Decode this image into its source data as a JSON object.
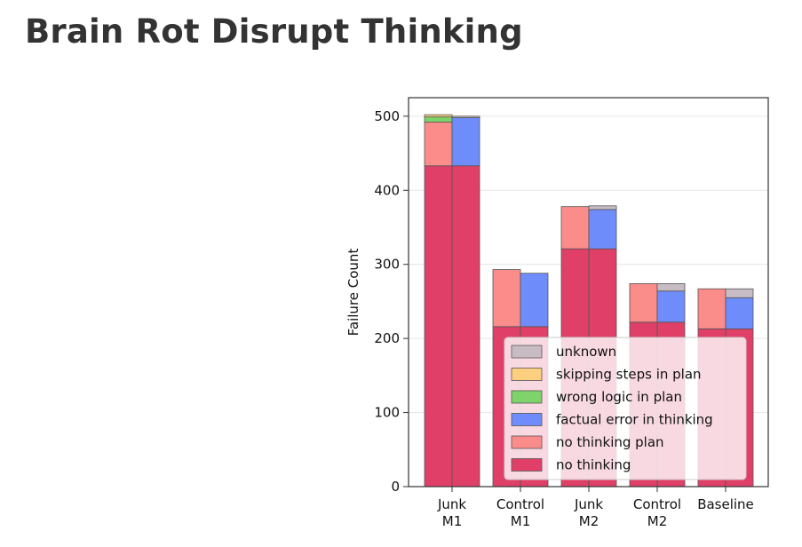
{
  "page": {
    "title": "Brain Rot Disrupt Thinking"
  },
  "chart_data": {
    "type": "bar",
    "title": "",
    "xlabel": "",
    "ylabel": "Failure Count",
    "ylim": [
      0,
      525
    ],
    "yticks": [
      0,
      100,
      200,
      300,
      400,
      500
    ],
    "grid": true,
    "legend_position": "lower-right",
    "layout": "each category has two adjacent stacked bars: left stack = no thinking + no thinking plan + wrong logic in plan + skipping steps in plan; right stack = no thinking + factual error in thinking + unknown",
    "categories": [
      {
        "line1": "Junk",
        "line2": "M1"
      },
      {
        "line1": "Control",
        "line2": "M1"
      },
      {
        "line1": "Junk",
        "line2": "M2"
      },
      {
        "line1": "Control",
        "line2": "M2"
      },
      {
        "line1": "Baseline",
        "line2": ""
      }
    ],
    "series": [
      {
        "key": "unknown",
        "name": "unknown",
        "color": "#c8bcc4",
        "stack": "right",
        "values": [
          2,
          0,
          5,
          10,
          12
        ]
      },
      {
        "key": "skip",
        "name": "skipping steps in plan",
        "color": "#fdd080",
        "stack": "left",
        "values": [
          3,
          0,
          0,
          0,
          0
        ]
      },
      {
        "key": "wrong",
        "name": "wrong logic in plan",
        "color": "#7ed36a",
        "stack": "left",
        "values": [
          7,
          0,
          0,
          0,
          0
        ]
      },
      {
        "key": "factual",
        "name": "factual error in thinking",
        "color": "#6f8dfa",
        "stack": "right",
        "values": [
          65,
          72,
          53,
          42,
          42
        ]
      },
      {
        "key": "plan",
        "name": "no thinking plan",
        "color": "#fa8c8a",
        "stack": "left",
        "values": [
          59,
          77,
          57,
          52,
          54
        ]
      },
      {
        "key": "none",
        "name": "no thinking",
        "color": "#e04068",
        "stack": "both",
        "values": [
          433,
          216,
          321,
          222,
          213
        ]
      }
    ]
  }
}
